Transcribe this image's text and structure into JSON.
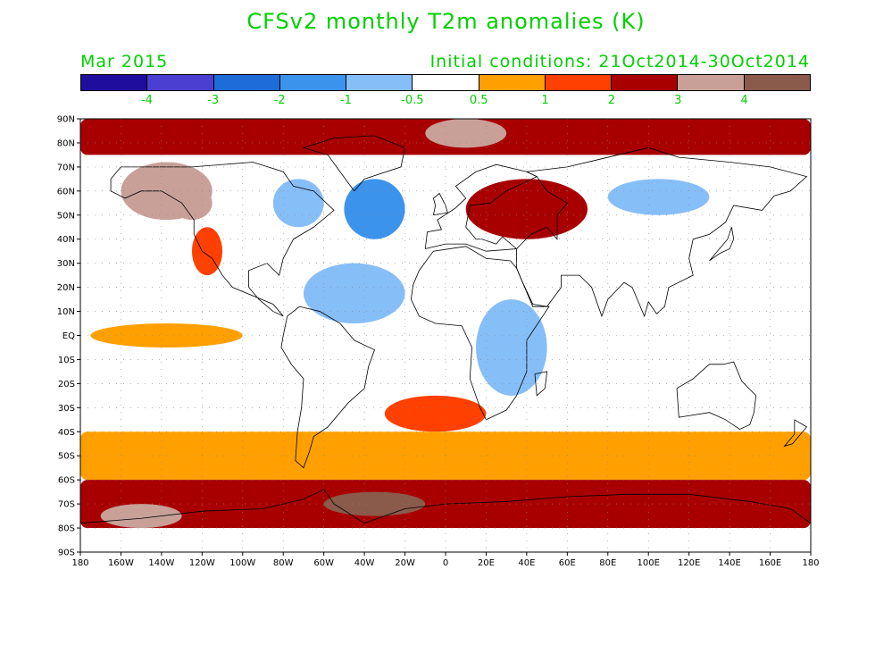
{
  "title": "CFSv2 monthly T2m anomalies (K)",
  "valid_month": "Mar 2015",
  "initial_conditions": "Initial conditions: 21Oct2014-30Oct2014",
  "legend": {
    "colors": [
      "#1f0d9e",
      "#4a3fd0",
      "#1e6cd8",
      "#3c93ec",
      "#86bef8",
      "#ffffff",
      "#ffa000",
      "#ff4000",
      "#a80000",
      "#c8a098",
      "#8a5a4a"
    ],
    "labels": [
      "-4",
      "-3",
      "-2",
      "-1",
      "-0.5",
      "0.5",
      "1",
      "2",
      "3",
      "4"
    ]
  },
  "axes": {
    "lat_labels": [
      "90N",
      "80N",
      "70N",
      "60N",
      "50N",
      "40N",
      "30N",
      "20N",
      "10N",
      "EQ",
      "10S",
      "20S",
      "30S",
      "40S",
      "50S",
      "60S",
      "70S",
      "80S",
      "90S"
    ],
    "lon_labels": [
      "180",
      "160W",
      "140W",
      "120W",
      "100W",
      "80W",
      "60W",
      "40W",
      "20W",
      "0",
      "20E",
      "40E",
      "60E",
      "80E",
      "100E",
      "120E",
      "140E",
      "160E",
      "180"
    ]
  },
  "anomaly_regions": [
    {
      "name": "arctic-warm-band",
      "lon": [
        -180,
        180
      ],
      "lat": [
        75,
        90
      ],
      "anomaly": 2.5
    },
    {
      "name": "greenland-north",
      "lon": [
        -10,
        30
      ],
      "lat": [
        78,
        90
      ],
      "anomaly": 3.5
    },
    {
      "name": "alaska-yukon",
      "lon": [
        -160,
        -115
      ],
      "lat": [
        48,
        72
      ],
      "anomaly": 3
    },
    {
      "name": "canada-west-core",
      "lon": [
        -135,
        -115
      ],
      "lat": [
        48,
        62
      ],
      "anomaly": 3.5
    },
    {
      "name": "us-west",
      "lon": [
        -125,
        -110
      ],
      "lat": [
        25,
        45
      ],
      "anomaly": 1.5
    },
    {
      "name": "canada-east",
      "lon": [
        -85,
        -60
      ],
      "lat": [
        45,
        65
      ],
      "anomaly": -1
    },
    {
      "name": "north-atlantic",
      "lon": [
        -50,
        -20
      ],
      "lat": [
        40,
        65
      ],
      "anomaly": -1.5
    },
    {
      "name": "tropical-atlantic",
      "lon": [
        -70,
        -20
      ],
      "lat": [
        5,
        30
      ],
      "anomaly": -1
    },
    {
      "name": "eastern-europe",
      "lon": [
        10,
        70
      ],
      "lat": [
        40,
        65
      ],
      "anomaly": 2
    },
    {
      "name": "siberia",
      "lon": [
        80,
        130
      ],
      "lat": [
        50,
        65
      ],
      "anomaly": -1
    },
    {
      "name": "east-africa",
      "lon": [
        15,
        50
      ],
      "lat": [
        -25,
        15
      ],
      "anomaly": -1
    },
    {
      "name": "eastern-pacific-eq",
      "lon": [
        -175,
        -100
      ],
      "lat": [
        -5,
        5
      ],
      "anomaly": 0.8
    },
    {
      "name": "south-atlantic",
      "lon": [
        -30,
        20
      ],
      "lat": [
        -40,
        -25
      ],
      "anomaly": 1
    },
    {
      "name": "southern-ocean",
      "lon": [
        -180,
        180
      ],
      "lat": [
        -60,
        -40
      ],
      "anomaly": 0.8
    },
    {
      "name": "antarctic-band",
      "lon": [
        -180,
        180
      ],
      "lat": [
        -80,
        -60
      ],
      "anomaly": 2
    },
    {
      "name": "weddell-sea",
      "lon": [
        -60,
        -10
      ],
      "lat": [
        -75,
        -65
      ],
      "anomaly": 4
    },
    {
      "name": "ross-region",
      "lon": [
        -170,
        -130
      ],
      "lat": [
        -80,
        -70
      ],
      "anomaly": 3
    }
  ]
}
